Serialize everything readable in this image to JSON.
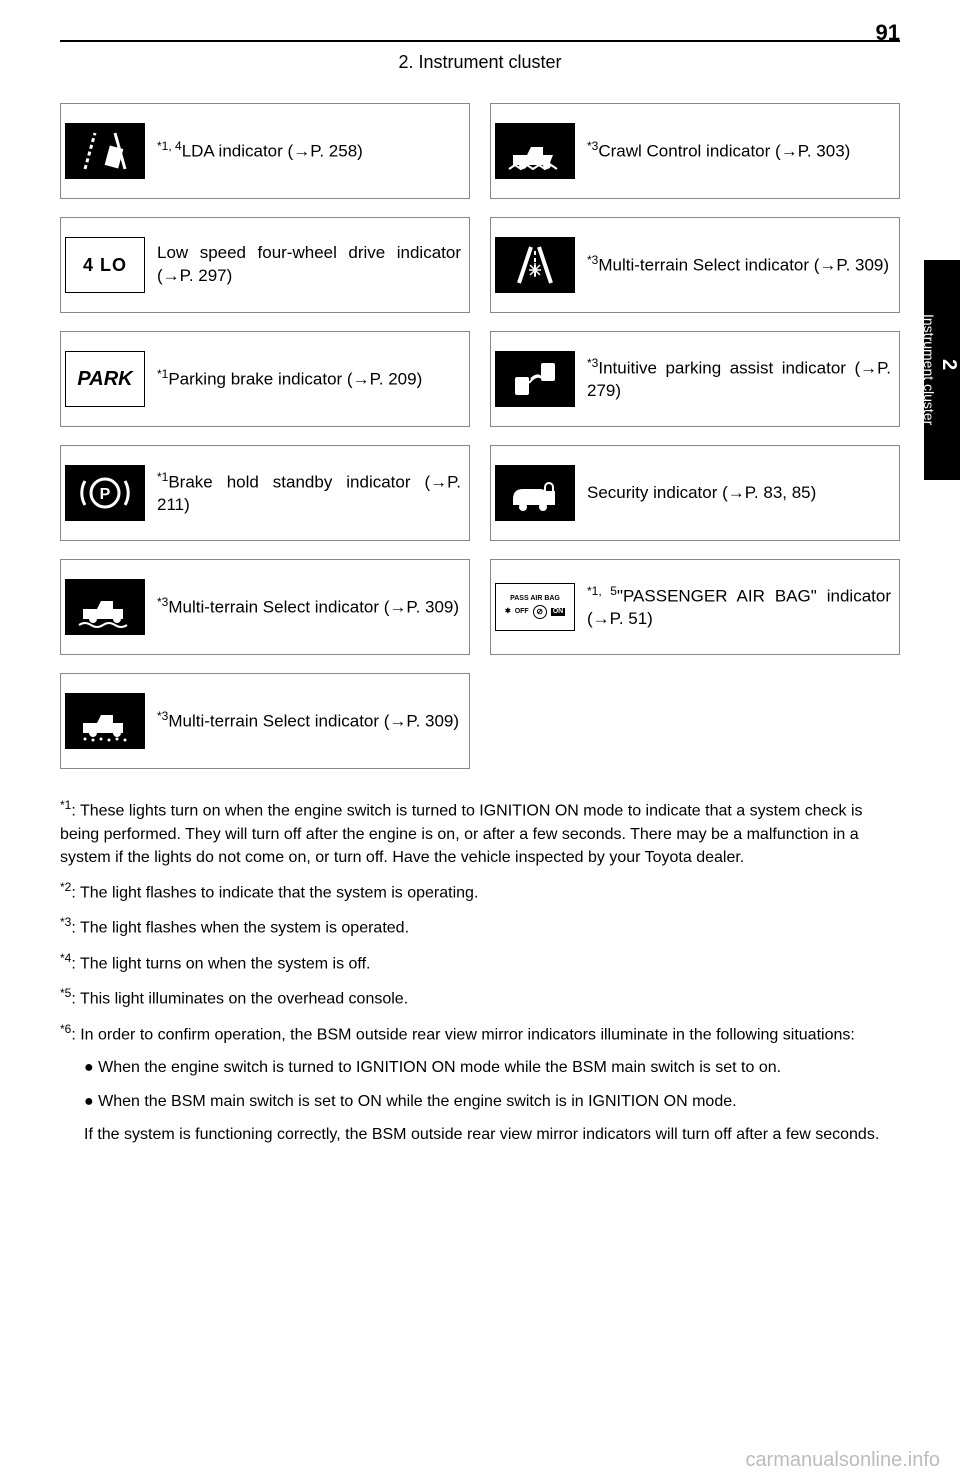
{
  "page_number": "91",
  "section_title": "2. Instrument cluster",
  "side_tab": {
    "num": "2",
    "text": "Instrument cluster"
  },
  "cells": [
    {
      "icon": "lda",
      "icon_style": "dark",
      "sup": "*1, 4",
      "text": "LDA indicator (→P. 258)"
    },
    {
      "icon": "truck-rocks",
      "icon_style": "dark",
      "sup": "*3",
      "text": "Crawl Control indicator (→P. 303)"
    },
    {
      "icon": "4lo",
      "icon_style": "light",
      "sup": "",
      "text": "Low speed four-wheel drive indicator (→P. 297)"
    },
    {
      "icon": "snow-road",
      "icon_style": "dark",
      "sup": "*3",
      "text": "Multi-terrain Select indicator (→P. 309)"
    },
    {
      "icon": "park",
      "icon_style": "light",
      "sup": "*1",
      "text": "Parking brake indicator (→P. 209)"
    },
    {
      "icon": "parking-assist",
      "icon_style": "dark",
      "sup": "*3",
      "text": "Intuitive parking assist indicator (→P. 279)"
    },
    {
      "icon": "brake-hold",
      "icon_style": "dark",
      "sup": "*1",
      "text": "Brake hold standby indicator (→P. 211)"
    },
    {
      "icon": "security",
      "icon_style": "dark",
      "sup": "",
      "text": "Security indicator (→P. 83, 85)"
    },
    {
      "icon": "truck-sand",
      "icon_style": "dark",
      "sup": "*3",
      "text": "Multi-terrain Select indicator (→P. 309)"
    },
    {
      "icon": "pass-airbag",
      "icon_style": "airbag",
      "sup": "*1, 5",
      "text": "\"PASSENGER AIR BAG\" indicator (→P. 51)"
    },
    {
      "icon": "truck-loose",
      "icon_style": "dark",
      "sup": "*3",
      "text": "Multi-terrain Select indicator (→P. 309)"
    }
  ],
  "footnotes": [
    {
      "sup": "*1",
      "text": ": These lights turn on when the engine switch is turned to IGNITION ON mode to indicate that a system check is being performed. They will turn off after the engine is on, or after a few seconds. There may be a malfunction in a system if the lights do not come on, or turn off. Have the vehicle inspected by your Toyota dealer."
    },
    {
      "sup": "*2",
      "text": ": The light flashes to indicate that the system is operating."
    },
    {
      "sup": "*3",
      "text": ": The light flashes when the system is operated."
    },
    {
      "sup": "*4",
      "text": ": The light turns on when the system is off."
    },
    {
      "sup": "*5",
      "text": ": This light illuminates on the overhead console."
    },
    {
      "sup": "*6",
      "text": ": In order to confirm operation, the BSM outside rear view mirror indicators illuminate in the following situations:"
    }
  ],
  "bullets": [
    "When the engine switch is turned to IGNITION ON mode while the BSM main switch is set to on.",
    "When the BSM main switch is set to ON while the engine switch is in IGNITION ON mode."
  ],
  "post_bullet": "If the system is functioning correctly, the BSM outside rear view mirror indicators will turn off after a few seconds.",
  "watermark": "carmanualsonline.info"
}
